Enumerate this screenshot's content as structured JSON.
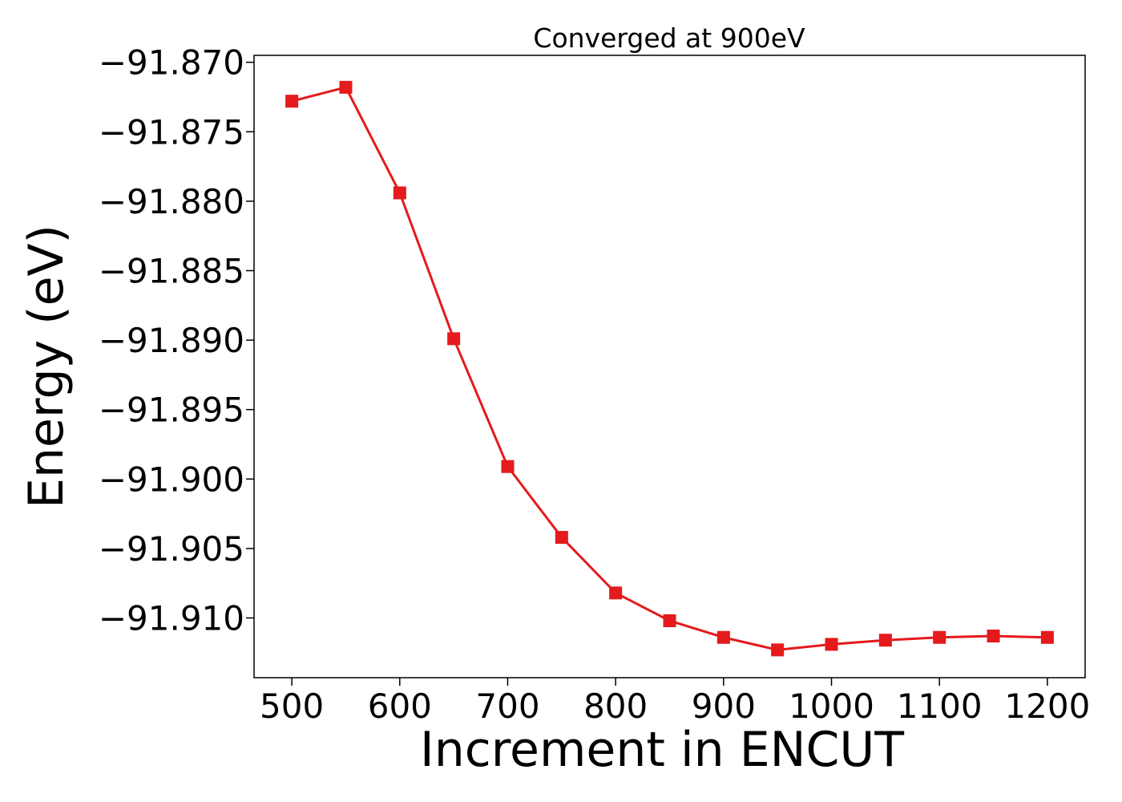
{
  "chart_data": {
    "type": "line",
    "title": "Converged at 900eV",
    "xlabel": "Increment in ENCUT",
    "ylabel": "Energy (eV)",
    "x": [
      500,
      550,
      600,
      650,
      700,
      750,
      800,
      850,
      900,
      950,
      1000,
      1050,
      1100,
      1150,
      1200
    ],
    "series": [
      {
        "values": [
          -91.8728,
          -91.8718,
          -91.8794,
          -91.8899,
          -91.8991,
          -91.9042,
          -91.9082,
          -91.9102,
          -91.9114,
          -91.9123,
          -91.9119,
          -91.9116,
          -91.9114,
          -91.9113,
          -91.9114
        ],
        "color": "#e41a1c",
        "marker": "square"
      }
    ],
    "xlim": [
      465,
      1235
    ],
    "ylim": [
      -91.9143,
      -91.8695
    ],
    "xticks": [
      500,
      600,
      700,
      800,
      900,
      1000,
      1100,
      1200
    ],
    "xtick_labels": [
      "500",
      "600",
      "700",
      "800",
      "900",
      "1000",
      "1100",
      "1200"
    ],
    "yticks": [
      -91.87,
      -91.875,
      -91.88,
      -91.885,
      -91.89,
      -91.895,
      -91.9,
      -91.905,
      -91.91
    ],
    "ytick_labels": [
      "−91.870",
      "−91.875",
      "−91.880",
      "−91.885",
      "−91.890",
      "−91.895",
      "−91.900",
      "−91.905",
      "−91.910"
    ],
    "grid": false,
    "legend": "none"
  }
}
